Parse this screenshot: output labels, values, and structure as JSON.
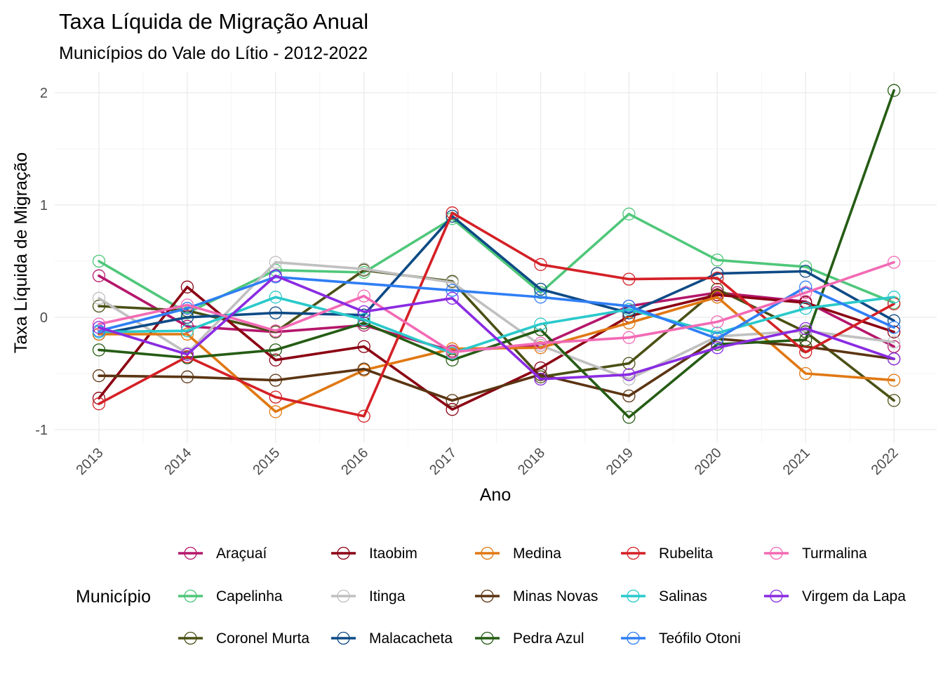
{
  "chart_data": {
    "type": "line",
    "title": "Taxa Líquida de Migração Anual",
    "subtitle": "Municípios do Vale do Lítio - 2012-2022",
    "xlabel": "Ano",
    "ylabel": "Taxa Líquida de Migração",
    "x": [
      2013,
      2014,
      2015,
      2016,
      2017,
      2018,
      2019,
      2020,
      2021,
      2022
    ],
    "yticks": [
      -1,
      0,
      1,
      2
    ],
    "ylim": [
      -1.1,
      2.1
    ],
    "grid": true,
    "legend": {
      "title": "Município",
      "position": "bottom"
    },
    "series": [
      {
        "name": "Araçuaí",
        "color": "#b5176b",
        "values": [
          0.37,
          -0.08,
          -0.13,
          -0.07,
          -0.3,
          -0.25,
          0.1,
          0.22,
          0.14,
          -0.26
        ]
      },
      {
        "name": "Capelinha",
        "color": "#4fc77a",
        "values": [
          0.5,
          0.04,
          0.42,
          0.4,
          0.88,
          0.22,
          0.92,
          0.51,
          0.45,
          0.13
        ]
      },
      {
        "name": "Coronel Murta",
        "color": "#4b5014",
        "values": [
          0.1,
          0.06,
          -0.13,
          0.42,
          0.32,
          -0.53,
          -0.41,
          0.25,
          -0.13,
          -0.74
        ]
      },
      {
        "name": "Itaobim",
        "color": "#8b0013",
        "values": [
          -0.72,
          0.27,
          -0.38,
          -0.26,
          -0.82,
          -0.45,
          0.01,
          0.2,
          0.13,
          -0.13
        ]
      },
      {
        "name": "Itinga",
        "color": "#c0c0c0",
        "values": [
          0.17,
          -0.32,
          0.49,
          0.43,
          0.31,
          -0.25,
          -0.55,
          -0.17,
          -0.12,
          -0.22
        ]
      },
      {
        "name": "Malacacheta",
        "color": "#0d4a85",
        "values": [
          -0.15,
          0.0,
          0.04,
          0.02,
          0.9,
          0.25,
          0.04,
          0.39,
          0.41,
          -0.03
        ]
      },
      {
        "name": "Medina",
        "color": "#e07812",
        "values": [
          -0.15,
          -0.15,
          -0.84,
          -0.47,
          -0.28,
          -0.27,
          -0.05,
          0.18,
          -0.5,
          -0.56
        ]
      },
      {
        "name": "Minas Novas",
        "color": "#5b3412",
        "values": [
          -0.52,
          -0.53,
          -0.56,
          -0.46,
          -0.74,
          -0.51,
          -0.7,
          -0.19,
          -0.26,
          -0.37
        ]
      },
      {
        "name": "Pedra Azul",
        "color": "#255c14",
        "values": [
          -0.29,
          -0.36,
          -0.29,
          -0.05,
          -0.38,
          -0.11,
          -0.89,
          -0.24,
          -0.2,
          2.02
        ]
      },
      {
        "name": "Rubelita",
        "color": "#d42026",
        "values": [
          -0.77,
          -0.35,
          -0.71,
          -0.88,
          0.93,
          0.47,
          0.34,
          0.35,
          -0.31,
          0.12
        ]
      },
      {
        "name": "Salinas",
        "color": "#2ac9cb",
        "values": [
          -0.13,
          -0.12,
          0.18,
          -0.02,
          -0.32,
          -0.06,
          0.07,
          -0.14,
          0.08,
          0.18
        ]
      },
      {
        "name": "Teófilo Otoni",
        "color": "#2f7ef5",
        "values": [
          -0.12,
          0.08,
          0.36,
          null,
          0.24,
          0.18,
          0.1,
          -0.19,
          0.27,
          -0.09
        ]
      },
      {
        "name": "Turmalina",
        "color": "#f26ab4",
        "values": [
          -0.06,
          0.11,
          -0.12,
          0.19,
          -0.31,
          -0.23,
          -0.18,
          -0.04,
          0.22,
          0.49
        ]
      },
      {
        "name": "Virgem da Lapa",
        "color": "#8a2be2",
        "values": [
          -0.09,
          -0.33,
          0.37,
          0.05,
          0.17,
          -0.55,
          -0.51,
          -0.27,
          -0.1,
          -0.37
        ]
      }
    ]
  }
}
